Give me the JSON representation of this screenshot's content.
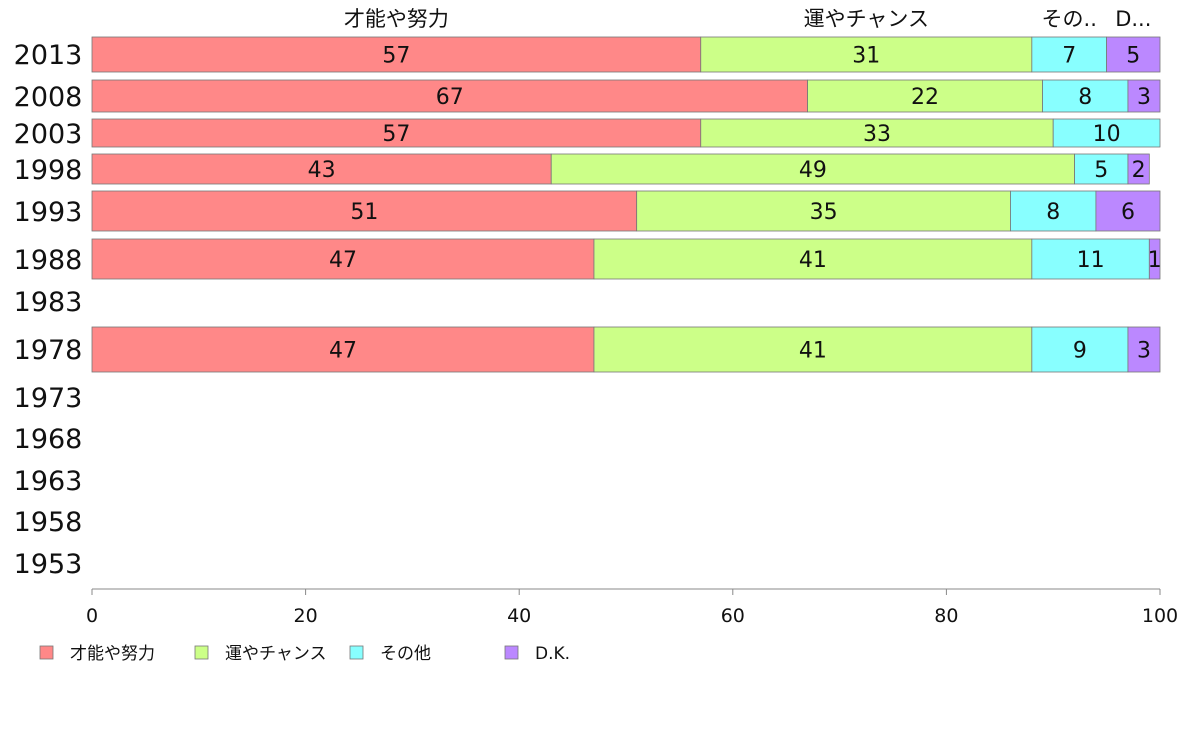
{
  "chart_data": {
    "type": "bar",
    "orientation": "horizontal",
    "stacked": true,
    "title": "",
    "xlabel": "",
    "ylabel": "",
    "xlim": [
      0,
      100
    ],
    "x_ticks": [
      "0",
      "20",
      "40",
      "60",
      "80",
      "100"
    ],
    "categories": [
      "2013",
      "2008",
      "2003",
      "1998",
      "1993",
      "1988",
      "1983",
      "1978",
      "1973",
      "1968",
      "1963",
      "1958",
      "1953"
    ],
    "series": [
      {
        "name": "才能や努力",
        "color": "#ff8888",
        "values": [
          57,
          67,
          57,
          43,
          51,
          47,
          null,
          47,
          null,
          null,
          null,
          null,
          null
        ]
      },
      {
        "name": "運やチャンス",
        "color": "#ccff88",
        "values": [
          31,
          22,
          33,
          49,
          35,
          41,
          null,
          41,
          null,
          null,
          null,
          null,
          null
        ]
      },
      {
        "name": "その他",
        "color": "#88ffff",
        "values": [
          7,
          8,
          10,
          5,
          8,
          11,
          null,
          9,
          null,
          null,
          null,
          null,
          null
        ]
      },
      {
        "name": "D.K.",
        "color": "#bb88ff",
        "values": [
          5,
          3,
          0,
          2,
          6,
          1,
          null,
          3,
          null,
          null,
          null,
          null,
          null
        ]
      }
    ],
    "top_labels": [
      "才能や努力",
      "運やチャンス",
      "その..",
      "D..."
    ],
    "legend_position": "bottom-left",
    "grid": false
  }
}
